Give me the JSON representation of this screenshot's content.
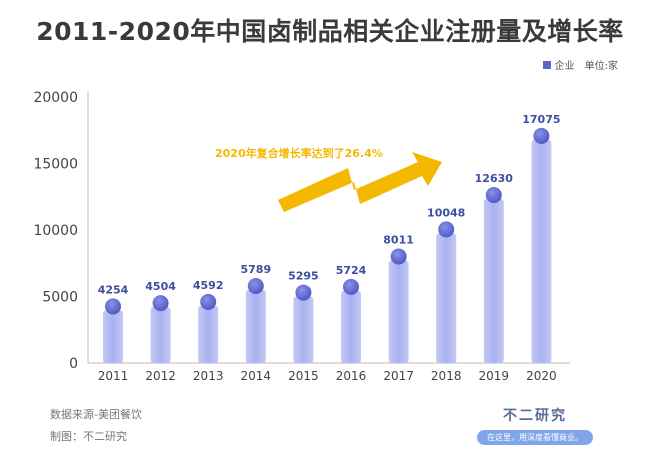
{
  "chart_data": {
    "type": "bar",
    "title": "2011-2020年中国卤制品相关企业注册量及增长率",
    "categories": [
      "2011",
      "2012",
      "2013",
      "2014",
      "2015",
      "2016",
      "2017",
      "2018",
      "2019",
      "2020"
    ],
    "series": [
      {
        "name": "企业",
        "values": [
          4254,
          4504,
          4592,
          5789,
          5295,
          5724,
          8011,
          10048,
          12630,
          17075
        ]
      }
    ],
    "ylim": [
      0,
      20000
    ],
    "yticks": [
      0,
      5000,
      10000,
      15000,
      20000
    ],
    "legend_unit": "单位:家",
    "legend_position": "top-right",
    "annotation": "2020年复合增长率达到了26.4%",
    "grid": false,
    "colors": {
      "bar": "#a9b1f0",
      "ball": "#5b63c9",
      "label": "#3d4ea0",
      "annotation": "#f5b800"
    }
  },
  "footer": {
    "source": "数据来源-美团餐饮",
    "maker": "制图：不二研究",
    "brand_name": "不二研究",
    "brand_tagline": "在这里，用深度看懂商业。"
  }
}
